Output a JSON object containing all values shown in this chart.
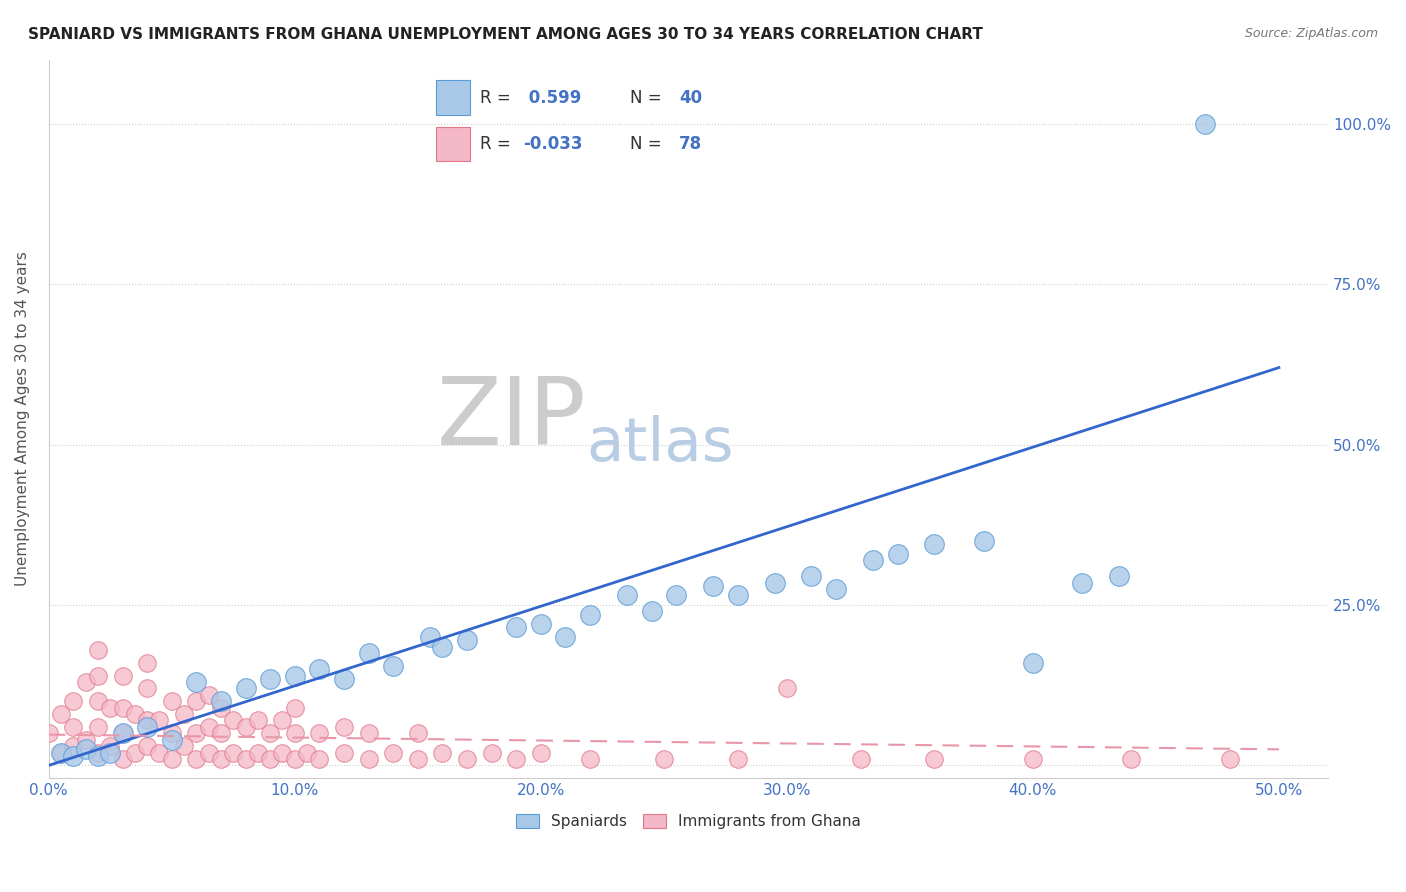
{
  "title": "SPANIARD VS IMMIGRANTS FROM GHANA UNEMPLOYMENT AMONG AGES 30 TO 34 YEARS CORRELATION CHART",
  "source_text": "Source: ZipAtlas.com",
  "ylabel": "Unemployment Among Ages 30 to 34 years",
  "xlim": [
    0.0,
    0.52
  ],
  "ylim": [
    -0.02,
    1.1
  ],
  "xticks": [
    0.0,
    0.1,
    0.2,
    0.3,
    0.4,
    0.5
  ],
  "xtick_labels": [
    "0.0%",
    "10.0%",
    "20.0%",
    "30.0%",
    "40.0%",
    "50.0%"
  ],
  "yticks": [
    0.0,
    0.25,
    0.5,
    0.75,
    1.0
  ],
  "ytick_labels_right": [
    "",
    "25.0%",
    "50.0%",
    "75.0%",
    "100.0%"
  ],
  "spaniards_color": "#a8c8e8",
  "spaniards_edge_color": "#5b9bd5",
  "ghana_color": "#f4b8c8",
  "ghana_edge_color": "#e07888",
  "trend_blue_color": "#3366cc",
  "trend_pink_color": "#e896a8",
  "watermark_ZIP_color": "#cccccc",
  "watermark_atlas_color": "#b8cce4",
  "background_color": "#ffffff",
  "legend_R1": " 0.599",
  "legend_N1": "40",
  "legend_R2": "-0.033",
  "legend_N2": "78",
  "blue_value_color": "#4472c4",
  "label_color": "#333333",
  "tick_label_color": "#4472c4",
  "grid_color": "#cccccc",
  "sp_x": [
    0.005,
    0.01,
    0.015,
    0.02,
    0.025,
    0.03,
    0.04,
    0.05,
    0.06,
    0.07,
    0.08,
    0.09,
    0.1,
    0.11,
    0.12,
    0.13,
    0.14,
    0.155,
    0.16,
    0.17,
    0.19,
    0.2,
    0.21,
    0.22,
    0.235,
    0.245,
    0.255,
    0.27,
    0.28,
    0.295,
    0.31,
    0.32,
    0.335,
    0.345,
    0.36,
    0.38,
    0.4,
    0.42,
    0.435,
    0.47
  ],
  "sp_y": [
    0.02,
    0.015,
    0.025,
    0.015,
    0.02,
    0.05,
    0.06,
    0.04,
    0.13,
    0.1,
    0.12,
    0.135,
    0.14,
    0.15,
    0.135,
    0.175,
    0.155,
    0.2,
    0.185,
    0.195,
    0.215,
    0.22,
    0.2,
    0.235,
    0.265,
    0.24,
    0.265,
    0.28,
    0.265,
    0.285,
    0.295,
    0.275,
    0.32,
    0.33,
    0.345,
    0.35,
    0.16,
    0.285,
    0.295,
    1.0
  ],
  "gh_x": [
    0.0,
    0.005,
    0.005,
    0.01,
    0.01,
    0.01,
    0.015,
    0.015,
    0.02,
    0.02,
    0.02,
    0.02,
    0.025,
    0.025,
    0.03,
    0.03,
    0.03,
    0.03,
    0.035,
    0.035,
    0.04,
    0.04,
    0.04,
    0.045,
    0.045,
    0.05,
    0.05,
    0.05,
    0.055,
    0.055,
    0.06,
    0.06,
    0.06,
    0.065,
    0.065,
    0.065,
    0.07,
    0.07,
    0.07,
    0.075,
    0.075,
    0.08,
    0.08,
    0.085,
    0.085,
    0.09,
    0.09,
    0.095,
    0.095,
    0.1,
    0.1,
    0.1,
    0.105,
    0.11,
    0.11,
    0.12,
    0.12,
    0.13,
    0.13,
    0.14,
    0.15,
    0.15,
    0.16,
    0.17,
    0.18,
    0.19,
    0.2,
    0.22,
    0.25,
    0.28,
    0.3,
    0.33,
    0.36,
    0.4,
    0.44,
    0.48,
    0.02,
    0.04
  ],
  "gh_y": [
    0.05,
    0.02,
    0.08,
    0.03,
    0.06,
    0.1,
    0.04,
    0.13,
    0.02,
    0.06,
    0.1,
    0.14,
    0.03,
    0.09,
    0.01,
    0.05,
    0.09,
    0.14,
    0.02,
    0.08,
    0.03,
    0.07,
    0.12,
    0.02,
    0.07,
    0.01,
    0.05,
    0.1,
    0.03,
    0.08,
    0.01,
    0.05,
    0.1,
    0.02,
    0.06,
    0.11,
    0.01,
    0.05,
    0.09,
    0.02,
    0.07,
    0.01,
    0.06,
    0.02,
    0.07,
    0.01,
    0.05,
    0.02,
    0.07,
    0.01,
    0.05,
    0.09,
    0.02,
    0.01,
    0.05,
    0.02,
    0.06,
    0.01,
    0.05,
    0.02,
    0.01,
    0.05,
    0.02,
    0.01,
    0.02,
    0.01,
    0.02,
    0.01,
    0.01,
    0.01,
    0.12,
    0.01,
    0.01,
    0.01,
    0.01,
    0.01,
    0.18,
    0.16
  ]
}
